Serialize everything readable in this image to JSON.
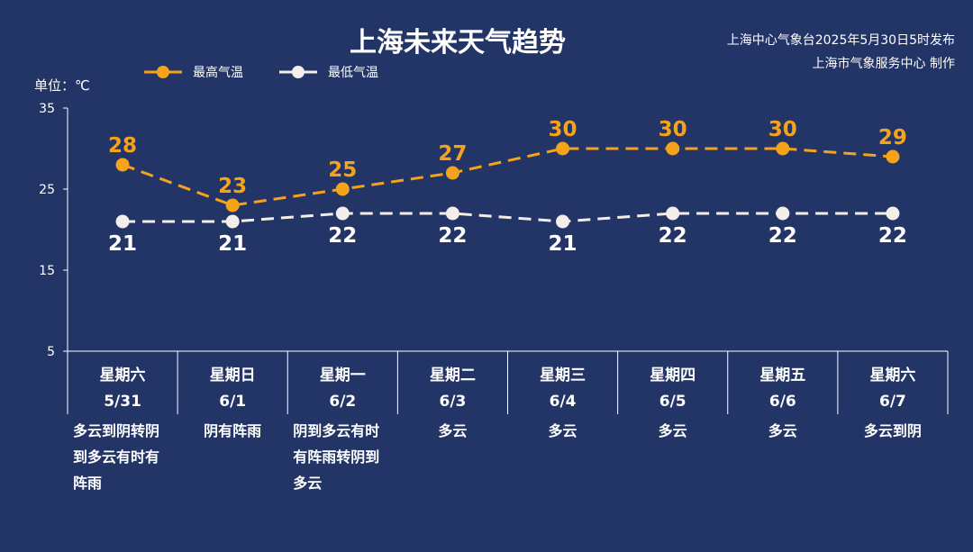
{
  "title": "上海未来天气趋势",
  "source_line1": "上海中心气象台2025年5月30日5时发布",
  "source_line2": "上海市气象服务中心 制作",
  "unit_label": "单位：℃",
  "colors": {
    "background": "#233567",
    "high": "#f5a31a",
    "low": "#f4eeea",
    "axis": "#ffffff"
  },
  "chart_data": {
    "type": "line",
    "ylim": [
      5,
      35
    ],
    "yticks": [
      5,
      15,
      25,
      35
    ],
    "ylabel": "单位：℃",
    "categories": [
      "星期六\n5/31",
      "星期日\n6/1",
      "星期一\n6/2",
      "星期二\n6/3",
      "星期三\n6/4",
      "星期四\n6/5",
      "星期五\n6/6",
      "星期六\n6/7"
    ],
    "weekdays": [
      "星期六",
      "星期日",
      "星期一",
      "星期二",
      "星期三",
      "星期四",
      "星期五",
      "星期六"
    ],
    "dates": [
      "5/31",
      "6/1",
      "6/2",
      "6/3",
      "6/4",
      "6/5",
      "6/6",
      "6/7"
    ],
    "weather": [
      [
        "多云到阴转阴",
        "到多云有时有",
        "阵雨"
      ],
      [
        "阴有阵雨"
      ],
      [
        "阴到多云有时",
        "有阵雨转阴到",
        "多云"
      ],
      [
        "多云"
      ],
      [
        "多云"
      ],
      [
        "多云"
      ],
      [
        "多云"
      ],
      [
        "多云到阴"
      ]
    ],
    "series": [
      {
        "name": "最高气温",
        "values": [
          28,
          23,
          25,
          27,
          30,
          30,
          30,
          29
        ]
      },
      {
        "name": "最低气温",
        "values": [
          21,
          21,
          22,
          22,
          21,
          22,
          22,
          22
        ]
      }
    ],
    "legend_position": "top-left",
    "grid": false
  }
}
